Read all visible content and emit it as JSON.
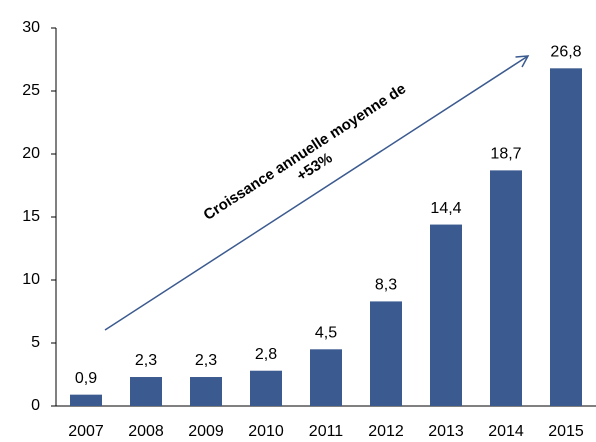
{
  "chart_data": {
    "type": "bar",
    "categories": [
      "2007",
      "2008",
      "2009",
      "2010",
      "2011",
      "2012",
      "2013",
      "2014",
      "2015"
    ],
    "values": [
      0.9,
      2.3,
      2.3,
      2.8,
      4.5,
      8.3,
      14.4,
      18.7,
      26.8
    ],
    "value_labels": [
      "0,9",
      "2,3",
      "2,3",
      "2,8",
      "4,5",
      "8,3",
      "14,4",
      "18,7",
      "26,8"
    ],
    "color": "#3b5a8f",
    "ylim": [
      0,
      30
    ],
    "yticks": [
      0,
      5,
      10,
      15,
      20,
      25,
      30
    ],
    "grid": false,
    "annotation": [
      "Croissance annuelle moyenne de",
      "+53%"
    ]
  }
}
